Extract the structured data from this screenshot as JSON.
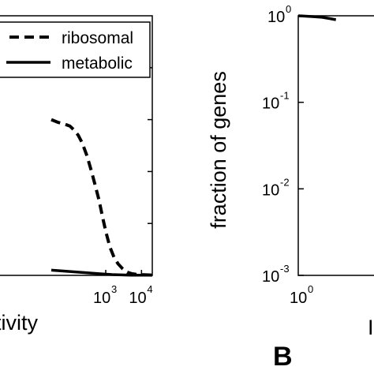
{
  "chart_data": [
    {
      "type": "line",
      "panel": "",
      "xscale": "log",
      "xlim": [
        1,
        20000
      ],
      "xticks": [
        {
          "base": "10",
          "exp": "3",
          "value": 1000
        },
        {
          "base": "10",
          "exp": "4",
          "value": 10000
        }
      ],
      "xlabel_visible": "tivity",
      "legend": {
        "placement": "top-right",
        "entries": [
          {
            "name": "ribosomal",
            "style": "dashed"
          },
          {
            "name": "metabolic",
            "style": "solid"
          }
        ]
      },
      "series": [
        {
          "name": "ribosomal",
          "style": "dashed",
          "x": [
            30,
            45,
            60,
            80,
            100,
            130,
            170,
            220,
            300,
            400,
            500,
            650,
            800,
            1000,
            1300,
            1700,
            2200,
            3000,
            4000,
            5500,
            8000,
            12000,
            20000
          ],
          "y": [
            0.6,
            0.59,
            0.585,
            0.58,
            0.575,
            0.56,
            0.54,
            0.51,
            0.46,
            0.4,
            0.35,
            0.29,
            0.23,
            0.17,
            0.11,
            0.07,
            0.045,
            0.025,
            0.012,
            0.006,
            0.003,
            0.002,
            0.001
          ]
        },
        {
          "name": "metabolic",
          "style": "solid",
          "x": [
            30,
            100,
            300,
            700,
            1500,
            5000,
            20000
          ],
          "y": [
            0.02,
            0.015,
            0.01,
            0.006,
            0.003,
            0.001,
            0.0005
          ]
        }
      ]
    },
    {
      "type": "line",
      "panel": "B",
      "xscale": "log",
      "yscale": "log",
      "ylim": [
        0.001,
        1
      ],
      "ylabel": "fraction of genes",
      "yticks": [
        {
          "base": "10",
          "exp": "0",
          "value": 1
        },
        {
          "base": "10",
          "exp": "-1",
          "value": 0.1
        },
        {
          "base": "10",
          "exp": "-2",
          "value": 0.01
        },
        {
          "base": "10",
          "exp": "-3",
          "value": 0.001
        }
      ],
      "xticks": [
        {
          "base": "10",
          "exp": "0",
          "value": 1
        }
      ],
      "xlabel_visible": "I",
      "series": [
        {
          "name": "",
          "style": "solid",
          "x": [
            1,
            1.5,
            2,
            2.5,
            3
          ],
          "y": [
            1,
            0.98,
            0.96,
            0.93,
            0.9
          ]
        }
      ]
    }
  ]
}
